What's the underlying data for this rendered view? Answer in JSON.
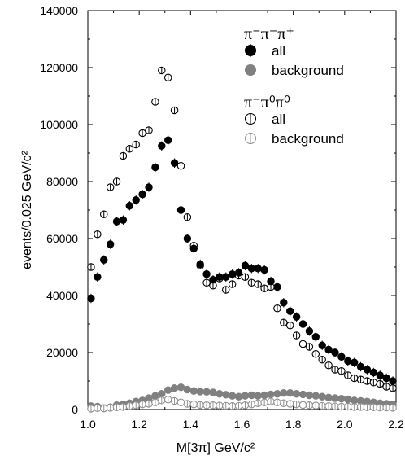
{
  "chart_data": {
    "type": "scatter",
    "xlabel": "M[3π]  GeV/c²",
    "ylabel": "events/0.025 GeV/c²",
    "xlim": [
      1.0,
      2.2
    ],
    "ylim": [
      0,
      140000
    ],
    "xticks": [
      "1.0",
      "1.2",
      "1.4",
      "1.6",
      "1.8",
      "2.0",
      "2.2"
    ],
    "xtick_values": [
      1.0,
      1.2,
      1.4,
      1.6,
      1.8,
      2.0,
      2.2
    ],
    "yticks": [
      "0",
      "20000",
      "40000",
      "60000",
      "80000",
      "100000",
      "120000",
      "140000"
    ],
    "ytick_values": [
      0,
      20000,
      40000,
      60000,
      80000,
      100000,
      120000,
      140000
    ],
    "legend_placement": "top-right",
    "legend_groups": [
      {
        "title": "π⁻π⁻π⁺",
        "entries": [
          {
            "label": "all",
            "series": 0
          },
          {
            "label": "background",
            "series": 1
          }
        ]
      },
      {
        "title": "π⁻π⁰π⁰",
        "entries": [
          {
            "label": "all",
            "series": 2
          },
          {
            "label": "background",
            "series": 3
          }
        ]
      }
    ],
    "colors": {
      "filled": "#000000",
      "gray": "#808080",
      "open": "#000000",
      "open_gray": "#909090"
    },
    "series": [
      {
        "name": "π⁻π⁻π⁺ all",
        "marker": "filled",
        "x": [
          1.0125,
          1.0375,
          1.0625,
          1.0875,
          1.1125,
          1.1375,
          1.1625,
          1.1875,
          1.2125,
          1.2375,
          1.2625,
          1.2875,
          1.3125,
          1.3375,
          1.3625,
          1.3875,
          1.4125,
          1.4375,
          1.4625,
          1.4875,
          1.5125,
          1.5375,
          1.5625,
          1.5875,
          1.6125,
          1.6375,
          1.6625,
          1.6875,
          1.7125,
          1.7375,
          1.7625,
          1.7875,
          1.8125,
          1.8375,
          1.8625,
          1.8875,
          1.9125,
          1.9375,
          1.9625,
          1.9875,
          2.0125,
          2.0375,
          2.0625,
          2.0875,
          2.1125,
          2.1375,
          2.1625,
          2.1875
        ],
        "y": [
          39000,
          46500,
          52500,
          58000,
          66000,
          66500,
          71500,
          73500,
          75500,
          78000,
          85000,
          92500,
          94500,
          86500,
          70000,
          60000,
          56500,
          51000,
          47500,
          45500,
          46500,
          46500,
          47500,
          48000,
          50500,
          49500,
          49500,
          49000,
          45000,
          43000,
          37500,
          34500,
          32500,
          30000,
          27500,
          25500,
          22500,
          21000,
          20000,
          18500,
          17000,
          16500,
          15000,
          14000,
          13000,
          12000,
          11000,
          10000
        ]
      },
      {
        "name": "π⁻π⁻π⁺ background",
        "marker": "gray",
        "x": [
          1.0125,
          1.0375,
          1.0625,
          1.0875,
          1.1125,
          1.1375,
          1.1625,
          1.1875,
          1.2125,
          1.2375,
          1.2625,
          1.2875,
          1.3125,
          1.3375,
          1.3625,
          1.3875,
          1.4125,
          1.4375,
          1.4625,
          1.4875,
          1.5125,
          1.5375,
          1.5625,
          1.5875,
          1.6125,
          1.6375,
          1.6625,
          1.6875,
          1.7125,
          1.7375,
          1.7625,
          1.7875,
          1.8125,
          1.8375,
          1.8625,
          1.8875,
          1.9125,
          1.9375,
          1.9625,
          1.9875,
          2.0125,
          2.0375,
          2.0625,
          2.0875,
          2.1125,
          2.1375,
          2.1625,
          2.1875
        ],
        "y": [
          1200,
          1000,
          500,
          800,
          1500,
          1800,
          2200,
          2800,
          3200,
          4000,
          4800,
          5500,
          6800,
          7500,
          7800,
          7000,
          6500,
          6300,
          6200,
          6000,
          5500,
          5200,
          4800,
          4500,
          4800,
          5000,
          4800,
          5000,
          5300,
          5500,
          5800,
          5800,
          5500,
          5300,
          5000,
          4800,
          4500,
          4200,
          4000,
          3800,
          3600,
          3200,
          3000,
          2800,
          2500,
          2200,
          2000,
          1800
        ]
      },
      {
        "name": "π⁻π⁰π⁰ all",
        "marker": "open",
        "x": [
          1.0125,
          1.0375,
          1.0625,
          1.0875,
          1.1125,
          1.1375,
          1.1625,
          1.1875,
          1.2125,
          1.2375,
          1.2625,
          1.2875,
          1.3125,
          1.3375,
          1.3625,
          1.3875,
          1.4125,
          1.4375,
          1.4625,
          1.4875,
          1.5125,
          1.5375,
          1.5625,
          1.5875,
          1.6125,
          1.6375,
          1.6625,
          1.6875,
          1.7125,
          1.7375,
          1.7625,
          1.7875,
          1.8125,
          1.8375,
          1.8625,
          1.8875,
          1.9125,
          1.9375,
          1.9625,
          1.9875,
          2.0125,
          2.0375,
          2.0625,
          2.0875,
          2.1125,
          2.1375,
          2.1625,
          2.1875
        ],
        "y": [
          50000,
          61500,
          68500,
          78000,
          80000,
          89000,
          91500,
          93000,
          97000,
          98000,
          108000,
          119000,
          116500,
          105000,
          85500,
          67500,
          57500,
          50500,
          44500,
          43500,
          46000,
          42000,
          44000,
          47000,
          46500,
          44500,
          44000,
          42500,
          43000,
          35500,
          30500,
          29500,
          26000,
          23000,
          22000,
          19500,
          17500,
          15500,
          14000,
          13500,
          12000,
          11000,
          10500,
          10000,
          9500,
          9000,
          8000,
          7500
        ]
      },
      {
        "name": "π⁻π⁰π⁰ background",
        "marker": "open_gray",
        "x": [
          1.0125,
          1.0375,
          1.0625,
          1.0875,
          1.1125,
          1.1375,
          1.1625,
          1.1875,
          1.2125,
          1.2375,
          1.2625,
          1.2875,
          1.3125,
          1.3375,
          1.3625,
          1.3875,
          1.4125,
          1.4375,
          1.4625,
          1.4875,
          1.5125,
          1.5375,
          1.5625,
          1.5875,
          1.6125,
          1.6375,
          1.6625,
          1.6875,
          1.7125,
          1.7375,
          1.7625,
          1.7875,
          1.8125,
          1.8375,
          1.8625,
          1.8875,
          1.9125,
          1.9375,
          1.9625,
          1.9875,
          2.0125,
          2.0375,
          2.0625,
          2.0875,
          2.1125,
          2.1375,
          2.1625,
          2.1875
        ],
        "y": [
          300,
          500,
          400,
          600,
          800,
          900,
          1200,
          1500,
          1800,
          2000,
          2500,
          3200,
          3500,
          3000,
          2500,
          2000,
          1800,
          1600,
          1500,
          1500,
          1400,
          1300,
          1200,
          1300,
          1500,
          1800,
          2200,
          2500,
          2800,
          2500,
          2200,
          2000,
          1800,
          1600,
          1500,
          1400,
          1300,
          1200,
          1100,
          1000,
          1000,
          900,
          900,
          800,
          800,
          700,
          700,
          600
        ]
      }
    ]
  }
}
